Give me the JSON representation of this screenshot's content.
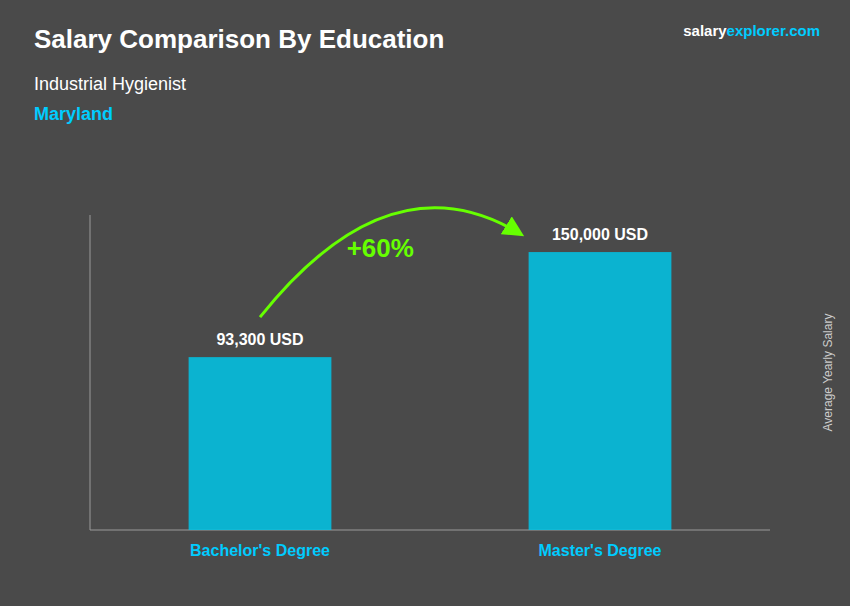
{
  "chart_data": {
    "type": "bar",
    "title": "Salary Comparison By Education",
    "subtitle": [
      "Industrial Hygienist",
      "Maryland"
    ],
    "ylabel": "Average Yearly Salary",
    "annotations": [
      "+60%",
      "salaryexplorer.com"
    ],
    "categories": [
      "Bachelor's Degree",
      "Master's Degree"
    ],
    "values": [
      93300,
      150000
    ],
    "value_labels": [
      "93,300 USD",
      "150,000 USD"
    ],
    "data_labels": true,
    "color": "#00C5E8",
    "ylim": [
      0,
      170000
    ],
    "tick_labels": false,
    "grid": false
  }
}
